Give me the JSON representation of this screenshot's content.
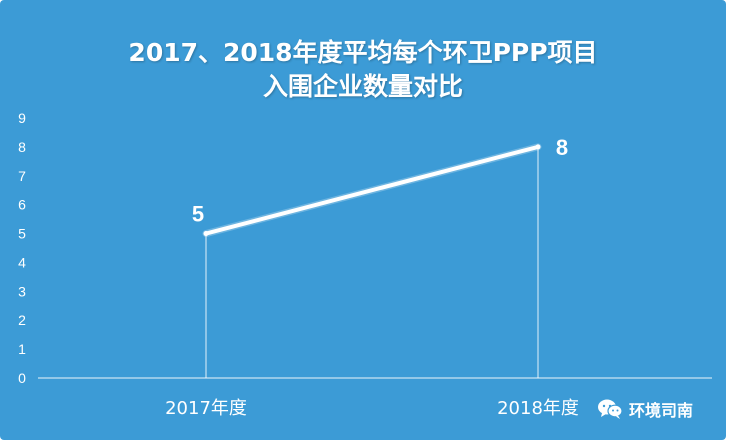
{
  "title_line1": "2017、2018年度平均每个环卫PPP项目",
  "title_line2": "入围企业数量对比",
  "watermark": "环境司南",
  "colors": {
    "background": "#3c9bd6",
    "line": "#ffffff",
    "text": "#ffffff"
  },
  "chart_data": {
    "type": "line",
    "title": "2017、2018年度平均每个环卫PPP项目入围企业数量对比",
    "categories": [
      "2017年度",
      "2018年度"
    ],
    "series": [
      {
        "values": [
          5,
          8
        ]
      }
    ],
    "data_labels": [
      "5",
      "8"
    ],
    "y_ticks": [
      "0",
      "1",
      "2",
      "3",
      "4",
      "5",
      "6",
      "7",
      "8",
      "9"
    ],
    "ylim": [
      0,
      9
    ],
    "grid": false,
    "legend": "none"
  }
}
